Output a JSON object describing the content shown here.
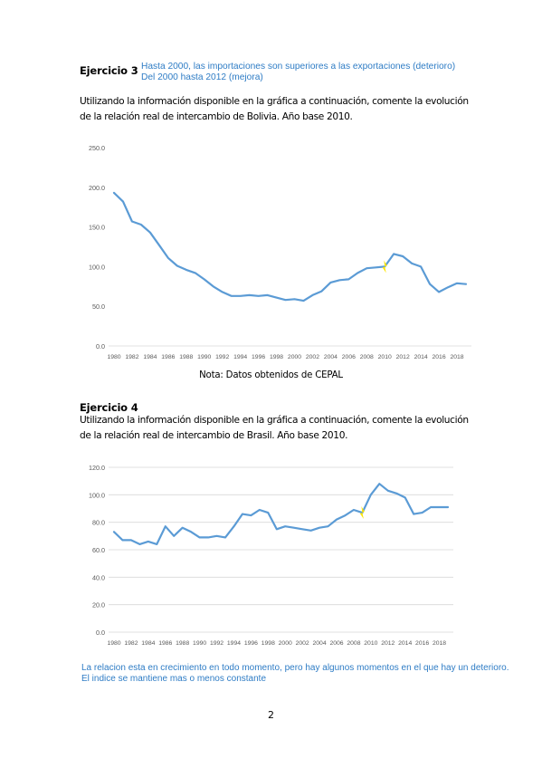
{
  "ejercicio3": {
    "title": "Ejercicio 3",
    "answer_line1": "Hasta 2000, las importaciones son superiores a las exportaciones (deterioro)",
    "answer_line2": "Del 2000 hasta 2012 (mejora)",
    "prompt_line1": "Utilizando la información disponible en la gráfica a continuación, comente la evolución",
    "prompt_line2": "de la relación real de intercambio de Bolivia. Año base 2010.",
    "note": "Nota: Datos obtenidos de CEPAL"
  },
  "ejercicio4": {
    "title": "Ejercicio 4",
    "prompt_line1": "Utilizando la información disponible en la gráfica a continuación, comente la evolución",
    "prompt_line2": "de la relación real de intercambio de Brasil. Año base 2010.",
    "answer_line1": "La relacion esta en crecimiento en todo momento, pero hay algunos momentos en el que hay un deterioro.",
    "answer_line2": "El indice se mantiene mas o menos constante"
  },
  "page_number": "2",
  "colors": {
    "line": "#5b9bd5",
    "marker": "#ffe600",
    "answer_text": "#2e7cc5",
    "axis_text": "#595959",
    "grid": "#d9d9d9"
  },
  "chart_data": [
    {
      "type": "line",
      "title": "",
      "xlabel": "",
      "ylabel": "",
      "grid": false,
      "x_tick_labels": [
        "1980",
        "1982",
        "1984",
        "1986",
        "1988",
        "1990",
        "1992",
        "1994",
        "1996",
        "1998",
        "2000",
        "2002",
        "2004",
        "2006",
        "2008",
        "2010",
        "2012",
        "2014",
        "2016",
        "2018"
      ],
      "y_tick_labels": [
        "0.0",
        "50.0",
        "100.0",
        "150.0",
        "200.0",
        "250.0"
      ],
      "ylim": [
        0,
        250
      ],
      "x": [
        1980,
        1981,
        1982,
        1983,
        1984,
        1985,
        1986,
        1987,
        1988,
        1989,
        1990,
        1991,
        1992,
        1993,
        1994,
        1995,
        1996,
        1997,
        1998,
        1999,
        2000,
        2001,
        2002,
        2003,
        2004,
        2005,
        2006,
        2007,
        2008,
        2009,
        2010,
        2011,
        2012,
        2013,
        2014,
        2015,
        2016,
        2017,
        2018,
        2019
      ],
      "series": [
        {
          "values": [
            193,
            182,
            157,
            153,
            143,
            127,
            111,
            101,
            96,
            92,
            84,
            75,
            68,
            63,
            63,
            64,
            63,
            64,
            61,
            58,
            59,
            57,
            64,
            69,
            80,
            83,
            84,
            92,
            98,
            99,
            100,
            116,
            113,
            104,
            100,
            78,
            68,
            74,
            79,
            78
          ]
        }
      ],
      "marker": {
        "x": 2010,
        "y": 100
      }
    },
    {
      "type": "line",
      "title": "",
      "xlabel": "",
      "ylabel": "",
      "grid": true,
      "x_tick_labels": [
        "1980",
        "1982",
        "1984",
        "1986",
        "1988",
        "1990",
        "1992",
        "1994",
        "1996",
        "1998",
        "2000",
        "2002",
        "2004",
        "2006",
        "2008",
        "2010",
        "2012",
        "2014",
        "2016",
        "2018"
      ],
      "y_tick_labels": [
        "0.0",
        "20.0",
        "40.0",
        "60.0",
        "80.0",
        "100.0",
        "120.0"
      ],
      "ylim": [
        0,
        120
      ],
      "x": [
        1980,
        1981,
        1982,
        1983,
        1984,
        1985,
        1986,
        1987,
        1988,
        1989,
        1990,
        1991,
        1992,
        1993,
        1994,
        1995,
        1996,
        1997,
        1998,
        1999,
        2000,
        2001,
        2002,
        2003,
        2004,
        2005,
        2006,
        2007,
        2008,
        2009,
        2010,
        2011,
        2012,
        2013,
        2014,
        2015,
        2016,
        2017,
        2018,
        2019
      ],
      "series": [
        {
          "values": [
            73,
            67,
            67,
            64,
            66,
            64,
            77,
            70,
            76,
            73,
            69,
            69,
            70,
            69,
            77,
            86,
            85,
            89,
            87,
            75,
            77,
            76,
            75,
            74,
            76,
            77,
            82,
            85,
            89,
            87,
            100,
            108,
            103,
            101,
            98,
            86,
            87,
            91,
            91,
            91
          ]
        }
      ],
      "marker": {
        "x": 2009,
        "y": 87
      }
    }
  ]
}
